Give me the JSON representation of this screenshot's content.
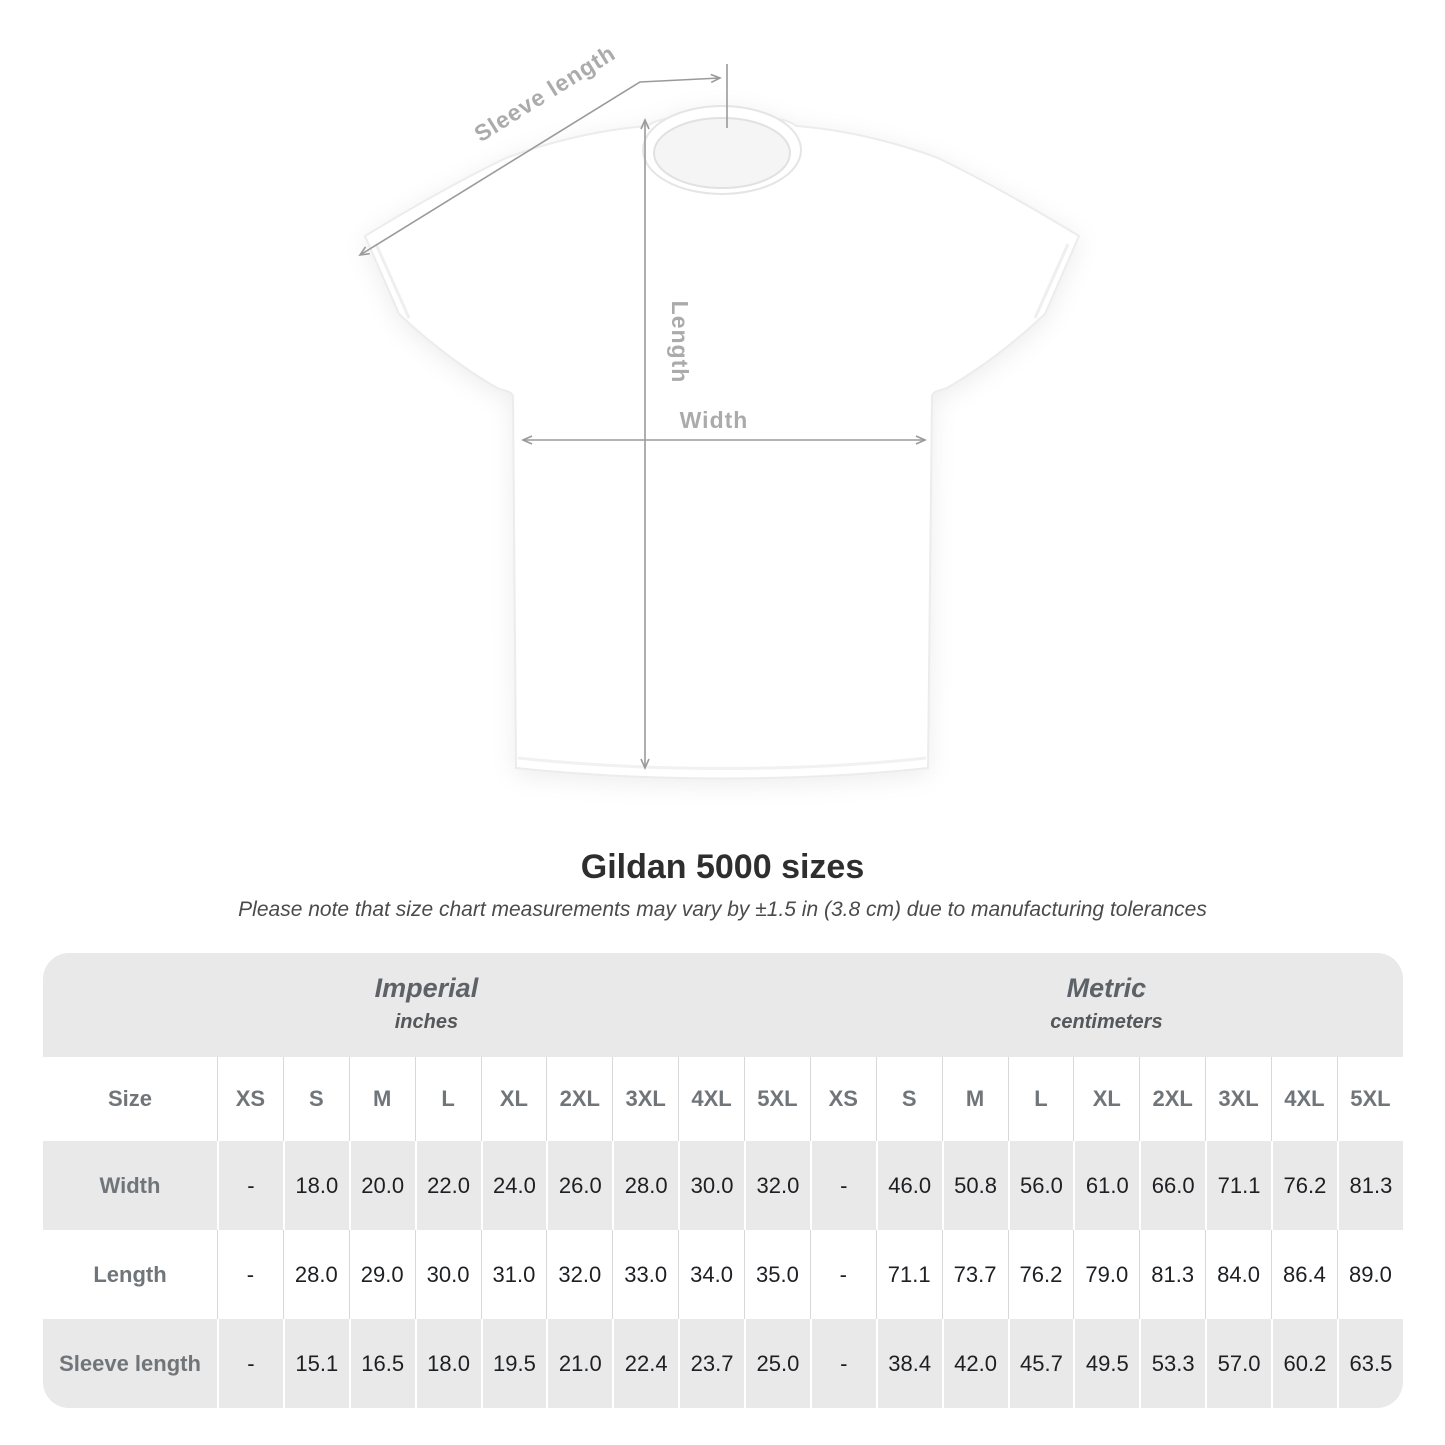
{
  "shirt_diagram": {
    "labels": {
      "sleeve_length": "Sleeve length",
      "length": "Length",
      "width": "Width"
    }
  },
  "heading": {
    "title": "Gildan 5000 sizes",
    "subtitle": "Please note that size chart measurements may vary by ±1.5 in (3.8 cm) due to manufacturing tolerances"
  },
  "table": {
    "corner_label": "Size",
    "unit_groups": [
      {
        "title": "Imperial",
        "subtitle": "inches"
      },
      {
        "title": "Metric",
        "subtitle": "centimeters"
      }
    ],
    "sizes": [
      "XS",
      "S",
      "M",
      "L",
      "XL",
      "2XL",
      "3XL",
      "4XL",
      "5XL"
    ],
    "rows": [
      {
        "label": "Width",
        "imperial": [
          "-",
          "18.0",
          "20.0",
          "22.0",
          "24.0",
          "26.0",
          "28.0",
          "30.0",
          "32.0"
        ],
        "metric": [
          "-",
          "46.0",
          "50.8",
          "56.0",
          "61.0",
          "66.0",
          "71.1",
          "76.2",
          "81.3"
        ]
      },
      {
        "label": "Length",
        "imperial": [
          "-",
          "28.0",
          "29.0",
          "30.0",
          "31.0",
          "32.0",
          "33.0",
          "34.0",
          "35.0"
        ],
        "metric": [
          "-",
          "71.1",
          "73.7",
          "76.2",
          "79.0",
          "81.3",
          "84.0",
          "86.4",
          "89.0"
        ]
      },
      {
        "label": "Sleeve length",
        "imperial": [
          "-",
          "15.1",
          "16.5",
          "18.0",
          "19.5",
          "21.0",
          "22.4",
          "23.7",
          "25.0"
        ],
        "metric": [
          "-",
          "38.4",
          "42.0",
          "45.7",
          "49.5",
          "53.3",
          "57.0",
          "60.2",
          "63.5"
        ]
      }
    ]
  },
  "chart_data": {
    "type": "table",
    "title": "Gildan 5000 sizes",
    "subtitle": "Please note that size chart measurements may vary by ±1.5 in (3.8 cm) due to manufacturing tolerances",
    "unit_groups": [
      "Imperial (inches)",
      "Metric (centimeters)"
    ],
    "columns": [
      "Size",
      "XS",
      "S",
      "M",
      "L",
      "XL",
      "2XL",
      "3XL",
      "4XL",
      "5XL",
      "XS",
      "S",
      "M",
      "L",
      "XL",
      "2XL",
      "3XL",
      "4XL",
      "5XL"
    ],
    "rows": [
      [
        "Width",
        null,
        18.0,
        20.0,
        22.0,
        24.0,
        26.0,
        28.0,
        30.0,
        32.0,
        null,
        46.0,
        50.8,
        56.0,
        61.0,
        66.0,
        71.1,
        76.2,
        81.3
      ],
      [
        "Length",
        null,
        28.0,
        29.0,
        30.0,
        31.0,
        32.0,
        33.0,
        34.0,
        35.0,
        null,
        71.1,
        73.7,
        76.2,
        79.0,
        81.3,
        84.0,
        86.4,
        89.0
      ],
      [
        "Sleeve length",
        null,
        15.1,
        16.5,
        18.0,
        19.5,
        21.0,
        22.4,
        23.7,
        25.0,
        null,
        38.4,
        42.0,
        45.7,
        49.5,
        53.3,
        57.0,
        60.2,
        63.5
      ]
    ]
  },
  "colors": {
    "row_stripe": "#e9e9e9",
    "separator": "#d8d8d8",
    "heading_text": "#2e2e2e",
    "table_text": "#1d1f22",
    "muted_label": "#70757a",
    "arrow": "#9a9a9a",
    "shirt_label": "#ababab"
  }
}
